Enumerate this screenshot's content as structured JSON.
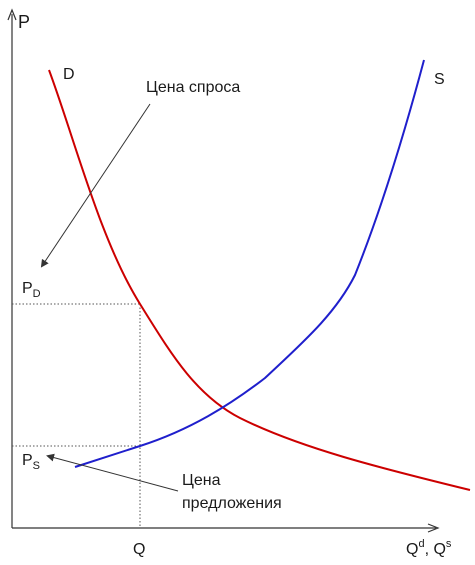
{
  "axes": {
    "y_label": "P",
    "x_label_main": "Q",
    "x_label_sup_d": "d",
    "x_label_sep": ", Q",
    "x_label_sup_s": "s"
  },
  "curves": {
    "demand": {
      "label": "D",
      "color": "#cc0000"
    },
    "supply": {
      "label": "S",
      "color": "#1f1fcc"
    }
  },
  "levels": {
    "pd_main": "P",
    "pd_sub": "D",
    "ps_main": "P",
    "ps_sub": "S",
    "q_label": "Q"
  },
  "annotations": {
    "demand_price": "Цена спроса",
    "supply_price_line1": "Цена",
    "supply_price_line2": "предложения"
  },
  "colors": {
    "axis": "#333333",
    "guide": "#555555",
    "arrow": "#333333"
  }
}
